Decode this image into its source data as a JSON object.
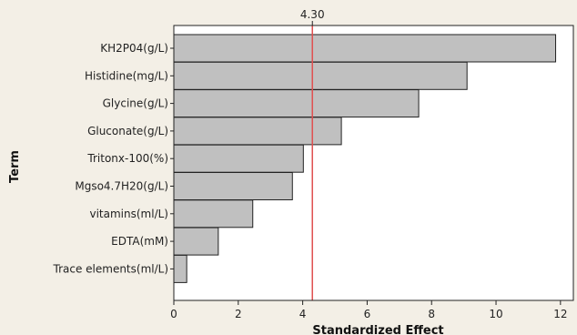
{
  "chart_data": {
    "type": "bar",
    "orientation": "horizontal",
    "categories": [
      "KH2P04(g/L)",
      "Histidine(mg/L)",
      "Glycine(g/L)",
      "Gluconate(g/L)",
      "Tritonx-100(%)",
      "Mgso4.7H20(g/L)",
      "vitamins(ml/L)",
      "EDTA(mM)",
      "Trace elements(ml/L)"
    ],
    "values": [
      11.85,
      9.1,
      7.6,
      5.2,
      4.02,
      3.68,
      2.45,
      1.38,
      0.4
    ],
    "xlabel": "Standardized Effect",
    "ylabel": "Term",
    "xlim": [
      0,
      12.4
    ],
    "xticks": [
      0,
      2,
      4,
      6,
      8,
      10,
      12
    ],
    "reference_line": {
      "value": 4.3,
      "label": "4.30",
      "color": "#e05050"
    },
    "bar_color": "#c0c0c0",
    "bar_edge_color": "#222222",
    "background_color": "#f3efe6",
    "plot_background_color": "#ffffff"
  }
}
